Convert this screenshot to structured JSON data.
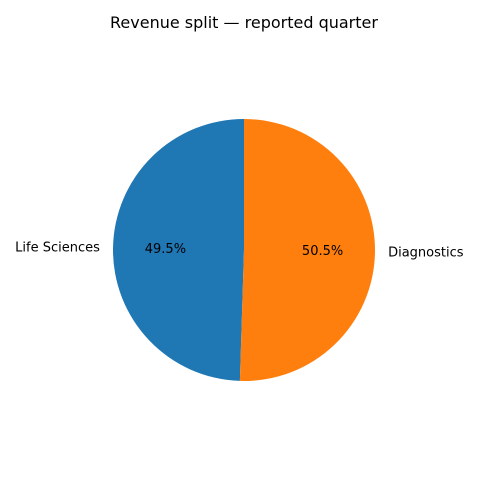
{
  "chart_data": {
    "type": "pie",
    "title": "Revenue split — reported quarter",
    "slices": [
      {
        "label": "Life Sciences",
        "value": 49.5,
        "pct_label": "49.5%",
        "color": "#1f77b4"
      },
      {
        "label": "Diagnostics",
        "value": 50.5,
        "pct_label": "50.5%",
        "color": "#ff7f0e"
      }
    ],
    "start_angle": "top",
    "direction": "counterclockwise",
    "legend": "none"
  }
}
